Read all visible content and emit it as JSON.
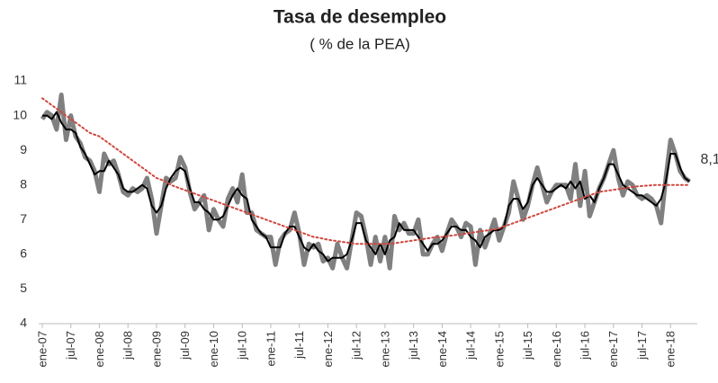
{
  "chart_data": {
    "type": "line",
    "title": "Tasa de desempleo",
    "subtitle": "( % de la PEA)",
    "categories": [
      "ene-07",
      null,
      null,
      null,
      null,
      null,
      "jul-07",
      null,
      null,
      null,
      null,
      null,
      "ene-08",
      null,
      null,
      null,
      null,
      null,
      "jul-08",
      null,
      null,
      null,
      null,
      null,
      "ene-09",
      null,
      null,
      null,
      null,
      null,
      "jul-09",
      null,
      null,
      null,
      null,
      null,
      "ene-10",
      null,
      null,
      null,
      null,
      null,
      "jul-10",
      null,
      null,
      null,
      null,
      null,
      "ene-11",
      null,
      null,
      null,
      null,
      null,
      "jul-11",
      null,
      null,
      null,
      null,
      null,
      "ene-12",
      null,
      null,
      null,
      null,
      null,
      "jul-12",
      null,
      null,
      null,
      null,
      null,
      "ene-13",
      null,
      null,
      null,
      null,
      null,
      "jul-13",
      null,
      null,
      null,
      null,
      null,
      "ene-14",
      null,
      null,
      null,
      null,
      null,
      "jul-14",
      null,
      null,
      null,
      null,
      null,
      "ene-15",
      null,
      null,
      null,
      null,
      null,
      "jul-15",
      null,
      null,
      null,
      null,
      null,
      "ene-16",
      null,
      null,
      null,
      null,
      null,
      "jul-16",
      null,
      null,
      null,
      null,
      null,
      "ene-17",
      null,
      null,
      null,
      null,
      null,
      "jul-17",
      null,
      null,
      null,
      null,
      null,
      "ene-18",
      null,
      null,
      null,
      null
    ],
    "series": [
      {
        "color": "#808080",
        "width": 5,
        "line_style": "solid",
        "values": [
          9.9,
          10.1,
          10.0,
          9.6,
          10.6,
          9.3,
          10.0,
          9.4,
          9.2,
          8.8,
          8.7,
          8.4,
          7.8,
          8.9,
          8.6,
          8.7,
          8.3,
          7.8,
          7.7,
          7.9,
          7.8,
          7.9,
          8.2,
          7.6,
          6.6,
          7.4,
          8.2,
          8.1,
          8.2,
          8.8,
          8.5,
          7.8,
          7.3,
          7.5,
          7.7,
          6.7,
          7.3,
          7.0,
          6.8,
          7.6,
          7.9,
          7.5,
          8.3,
          7.2,
          7.2,
          6.7,
          6.6,
          6.5,
          6.5,
          5.7,
          6.4,
          6.6,
          6.7,
          7.2,
          6.6,
          5.7,
          6.3,
          6.2,
          6.3,
          5.8,
          5.9,
          5.6,
          6.3,
          5.9,
          5.6,
          6.4,
          7.2,
          7.1,
          6.5,
          5.7,
          6.5,
          5.8,
          6.5,
          5.6,
          7.1,
          6.7,
          6.9,
          6.6,
          6.6,
          7.0,
          6.0,
          6.0,
          6.3,
          6.5,
          6.1,
          6.6,
          7.0,
          6.8,
          6.5,
          6.9,
          6.8,
          5.7,
          6.7,
          6.2,
          6.6,
          7.0,
          6.4,
          6.8,
          7.2,
          8.1,
          7.6,
          7.0,
          7.4,
          8.0,
          8.5,
          8.0,
          7.5,
          7.8,
          8.0,
          8.0,
          8.0,
          7.6,
          8.6,
          7.4,
          8.4,
          7.1,
          7.5,
          7.9,
          8.2,
          8.6,
          9.0,
          8.2,
          7.7,
          8.1,
          8.0,
          7.7,
          7.6,
          7.7,
          7.6,
          7.4,
          6.9,
          8.2,
          9.3,
          8.9,
          8.4,
          8.2,
          8.1
        ]
      },
      {
        "color": "#000000",
        "width": 2,
        "line_style": "solid",
        "values": [
          10.0,
          10.0,
          9.9,
          10.1,
          9.8,
          9.6,
          9.6,
          9.5,
          9.1,
          8.9,
          8.6,
          8.3,
          8.4,
          8.4,
          8.7,
          8.5,
          8.3,
          7.9,
          7.8,
          7.8,
          7.9,
          8.0,
          7.9,
          7.4,
          7.2,
          7.4,
          7.9,
          8.2,
          8.4,
          8.5,
          8.4,
          7.9,
          7.5,
          7.5,
          7.3,
          7.2,
          7.0,
          7.0,
          7.1,
          7.4,
          7.7,
          7.9,
          7.7,
          7.6,
          7.0,
          6.8,
          6.6,
          6.5,
          6.2,
          6.2,
          6.2,
          6.6,
          6.8,
          6.8,
          6.5,
          6.2,
          6.1,
          6.3,
          6.1,
          6.0,
          5.8,
          5.9,
          5.9,
          5.9,
          6.0,
          6.4,
          6.9,
          6.9,
          6.4,
          6.2,
          6.0,
          6.3,
          6.0,
          6.4,
          6.5,
          6.9,
          6.7,
          6.7,
          6.7,
          6.5,
          6.3,
          6.1,
          6.3,
          6.3,
          6.4,
          6.6,
          6.8,
          6.8,
          6.7,
          6.7,
          6.5,
          6.4,
          6.2,
          6.5,
          6.6,
          6.7,
          6.7,
          6.8,
          7.4,
          7.6,
          7.6,
          7.3,
          7.5,
          8.0,
          8.2,
          8.0,
          7.8,
          7.8,
          7.9,
          8.0,
          7.9,
          8.1,
          7.9,
          8.1,
          7.6,
          7.7,
          7.5,
          7.9,
          8.2,
          8.6,
          8.6,
          8.3,
          8.0,
          7.9,
          7.8,
          7.7,
          7.7,
          7.6,
          7.5,
          7.4,
          7.6,
          8.1,
          8.9,
          8.9,
          8.5,
          8.2,
          8.1
        ],
        "value_labels": [
          null,
          null,
          null,
          null,
          null,
          null,
          null,
          null,
          null,
          null,
          null,
          null,
          null,
          null,
          null,
          null,
          null,
          null,
          null,
          null,
          null,
          null,
          null,
          null,
          null,
          null,
          null,
          null,
          null,
          null,
          null,
          null,
          null,
          null,
          null,
          null,
          null,
          null,
          null,
          null,
          null,
          null,
          null,
          null,
          null,
          null,
          null,
          null,
          null,
          null,
          null,
          null,
          null,
          null,
          null,
          null,
          null,
          null,
          null,
          null,
          null,
          null,
          null,
          null,
          null,
          null,
          null,
          null,
          null,
          null,
          null,
          null,
          null,
          null,
          null,
          null,
          null,
          null,
          null,
          null,
          null,
          null,
          null,
          null,
          null,
          null,
          null,
          null,
          null,
          null,
          null,
          null,
          null,
          null,
          null,
          null,
          null,
          null,
          null,
          null,
          null,
          null,
          null,
          null,
          null,
          null,
          null,
          null,
          null,
          null,
          null,
          null,
          null,
          null,
          null,
          null,
          null,
          null,
          null,
          null,
          null,
          null,
          null,
          null,
          null,
          null,
          null,
          null,
          null,
          null,
          null,
          null,
          null,
          null,
          null,
          null,
          "8,1"
        ]
      },
      {
        "color": "#d0473f",
        "width": 2,
        "line_style": "dotted",
        "values": [
          10.5,
          10.4,
          10.3,
          10.2,
          10.1,
          10.0,
          9.9,
          9.8,
          9.7,
          9.6,
          9.5,
          9.45,
          9.4,
          9.3,
          9.2,
          9.1,
          9.0,
          8.9,
          8.8,
          8.7,
          8.6,
          8.5,
          8.4,
          8.3,
          8.2,
          8.15,
          8.1,
          8.0,
          7.95,
          7.9,
          7.85,
          7.8,
          7.75,
          7.7,
          7.65,
          7.6,
          7.55,
          7.5,
          7.45,
          7.4,
          7.35,
          7.3,
          7.25,
          7.2,
          7.15,
          7.1,
          7.05,
          7.0,
          6.95,
          6.9,
          6.85,
          6.8,
          6.75,
          6.7,
          6.65,
          6.6,
          6.55,
          6.5,
          6.48,
          6.45,
          6.42,
          6.4,
          6.38,
          6.36,
          6.34,
          6.32,
          6.3,
          6.3,
          6.3,
          6.3,
          6.3,
          6.3,
          6.3,
          6.3,
          6.32,
          6.34,
          6.36,
          6.38,
          6.4,
          6.42,
          6.44,
          6.46,
          6.48,
          6.5,
          6.5,
          6.52,
          6.54,
          6.56,
          6.58,
          6.6,
          6.62,
          6.64,
          6.66,
          6.68,
          6.7,
          6.72,
          6.75,
          6.8,
          6.85,
          6.9,
          6.95,
          7.0,
          7.05,
          7.1,
          7.15,
          7.2,
          7.25,
          7.3,
          7.35,
          7.4,
          7.45,
          7.5,
          7.55,
          7.6,
          7.65,
          7.7,
          7.75,
          7.8,
          7.82,
          7.84,
          7.86,
          7.88,
          7.9,
          7.92,
          7.94,
          7.96,
          7.97,
          7.98,
          7.99,
          8.0,
          8.0,
          8.0,
          8.0,
          8.0,
          8.0,
          8.0,
          8.0
        ]
      }
    ],
    "ylim": [
      4,
      11
    ],
    "yticks": [
      4,
      5,
      6,
      7,
      8,
      9,
      10,
      11
    ],
    "grid": false
  }
}
